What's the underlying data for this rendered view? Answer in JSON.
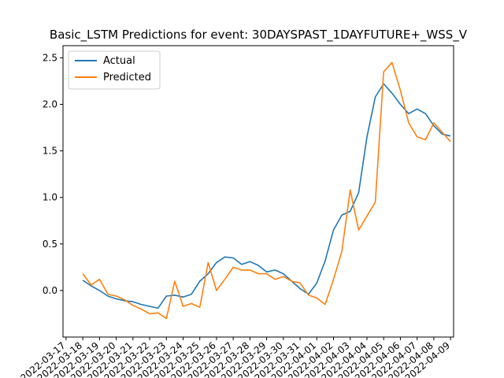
{
  "chart_data": {
    "type": "line",
    "title": "Basic_LSTM Predictions for event: 30DAYSPAST_1DAYFUTURE+_WSS_V",
    "xlabel": "",
    "ylabel": "",
    "ylim": [
      -0.5,
      2.63
    ],
    "x_date_range": [
      "2022-03-17",
      "2022-04-09"
    ],
    "y_ticks": [
      "0.0",
      "0.5",
      "1.0",
      "1.5",
      "2.0",
      "2.5"
    ],
    "y_tick_values": [
      0.0,
      0.5,
      1.0,
      1.5,
      2.0,
      2.5
    ],
    "x_ticks": [
      "2022-03-17",
      "2022-03-18",
      "2022-03-19",
      "2022-03-20",
      "2022-03-21",
      "2022-03-22",
      "2022-03-23",
      "2022-03-24",
      "2022-03-25",
      "2022-03-26",
      "2022-03-27",
      "2022-03-28",
      "2022-03-29",
      "2022-03-30",
      "2022-03-31",
      "2022-04-01",
      "2022-04-02",
      "2022-04-03",
      "2022-04-04",
      "2022-04-05",
      "2022-04-06",
      "2022-04-07",
      "2022-04-08",
      "2022-04-09"
    ],
    "grid": false,
    "legend": {
      "placement": "top-left",
      "entries": [
        "Actual",
        "Predicted"
      ]
    },
    "series": [
      {
        "name": "Actual",
        "color": "#1f77b4",
        "x": [
          "2022-03-18 00:00",
          "2022-03-18 12:00",
          "2022-03-19 00:00",
          "2022-03-19 12:00",
          "2022-03-20 00:00",
          "2022-03-20 12:00",
          "2022-03-21 00:00",
          "2022-03-21 12:00",
          "2022-03-22 00:00",
          "2022-03-22 12:00",
          "2022-03-23 00:00",
          "2022-03-23 12:00",
          "2022-03-24 00:00",
          "2022-03-24 12:00",
          "2022-03-25 00:00",
          "2022-03-25 12:00",
          "2022-03-26 00:00",
          "2022-03-26 12:00",
          "2022-03-27 00:00",
          "2022-03-27 12:00",
          "2022-03-28 00:00",
          "2022-03-28 12:00",
          "2022-03-29 00:00",
          "2022-03-29 12:00",
          "2022-03-30 00:00",
          "2022-03-30 12:00",
          "2022-03-31 00:00",
          "2022-03-31 12:00",
          "2022-04-01 00:00",
          "2022-04-01 12:00",
          "2022-04-02 00:00",
          "2022-04-02 12:00",
          "2022-04-03 00:00",
          "2022-04-03 12:00",
          "2022-04-04 00:00",
          "2022-04-04 12:00",
          "2022-04-05 00:00",
          "2022-04-05 12:00",
          "2022-04-06 00:00",
          "2022-04-06 12:00",
          "2022-04-07 00:00",
          "2022-04-07 12:00",
          "2022-04-08 00:00",
          "2022-04-08 12:00",
          "2022-04-09 00:00"
        ],
        "y": [
          0.11,
          0.05,
          0.0,
          -0.06,
          -0.09,
          -0.11,
          -0.12,
          -0.15,
          -0.17,
          -0.19,
          -0.06,
          -0.05,
          -0.07,
          -0.04,
          0.1,
          0.18,
          0.3,
          0.36,
          0.35,
          0.28,
          0.31,
          0.27,
          0.2,
          0.22,
          0.18,
          0.1,
          0.02,
          -0.04,
          0.08,
          0.32,
          0.65,
          0.81,
          0.85,
          1.05,
          1.65,
          2.08,
          2.22,
          2.12,
          2.0,
          1.9,
          1.95,
          1.9,
          1.77,
          1.68,
          1.66
        ]
      },
      {
        "name": "Predicted",
        "color": "#ff7f0e",
        "x": [
          "2022-03-18 00:00",
          "2022-03-18 12:00",
          "2022-03-19 00:00",
          "2022-03-19 12:00",
          "2022-03-20 00:00",
          "2022-03-20 12:00",
          "2022-03-21 00:00",
          "2022-03-21 12:00",
          "2022-03-22 00:00",
          "2022-03-22 12:00",
          "2022-03-23 00:00",
          "2022-03-23 12:00",
          "2022-03-24 00:00",
          "2022-03-24 12:00",
          "2022-03-25 00:00",
          "2022-03-25 12:00",
          "2022-03-26 00:00",
          "2022-03-26 12:00",
          "2022-03-27 00:00",
          "2022-03-27 12:00",
          "2022-03-28 00:00",
          "2022-03-28 12:00",
          "2022-03-29 00:00",
          "2022-03-29 12:00",
          "2022-03-30 00:00",
          "2022-03-30 12:00",
          "2022-03-31 00:00",
          "2022-03-31 12:00",
          "2022-04-01 00:00",
          "2022-04-01 12:00",
          "2022-04-02 00:00",
          "2022-04-02 12:00",
          "2022-04-03 00:00",
          "2022-04-03 12:00",
          "2022-04-04 00:00",
          "2022-04-04 12:00",
          "2022-04-05 00:00",
          "2022-04-05 12:00",
          "2022-04-06 00:00",
          "2022-04-06 12:00",
          "2022-04-07 00:00",
          "2022-04-07 12:00",
          "2022-04-08 00:00",
          "2022-04-08 12:00",
          "2022-04-09 00:00"
        ],
        "y": [
          0.18,
          0.06,
          0.12,
          -0.04,
          -0.06,
          -0.1,
          -0.16,
          -0.2,
          -0.25,
          -0.24,
          -0.3,
          0.1,
          -0.17,
          -0.14,
          -0.18,
          0.3,
          0.0,
          0.12,
          0.25,
          0.22,
          0.22,
          0.18,
          0.18,
          0.12,
          0.15,
          0.1,
          0.08,
          -0.05,
          -0.08,
          -0.15,
          0.12,
          0.42,
          1.08,
          0.65,
          0.8,
          0.95,
          2.35,
          2.45,
          2.15,
          1.8,
          1.65,
          1.62,
          1.8,
          1.7,
          1.6
        ]
      }
    ]
  }
}
